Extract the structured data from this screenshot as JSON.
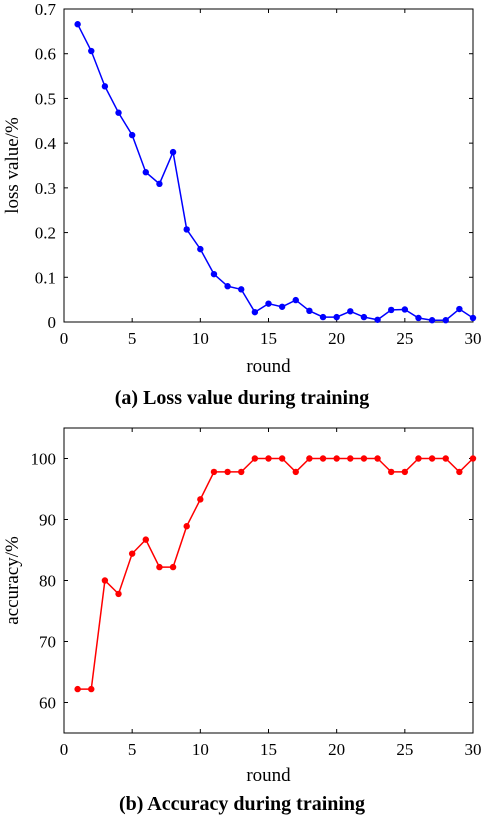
{
  "chart_data": [
    {
      "type": "line",
      "caption": "(a) Loss value during training",
      "xlabel": "round",
      "ylabel": "loss value/%",
      "xlim": [
        0,
        30
      ],
      "ylim": [
        0,
        0.7
      ],
      "xticks": [
        0,
        5,
        10,
        15,
        20,
        25,
        30
      ],
      "yticks": [
        0,
        0.1,
        0.2,
        0.3,
        0.4,
        0.5,
        0.6,
        0.7
      ],
      "grid": false,
      "color": "#0000ff",
      "x": [
        1,
        2,
        3,
        4,
        5,
        6,
        7,
        8,
        9,
        10,
        11,
        12,
        13,
        14,
        15,
        16,
        17,
        18,
        19,
        20,
        21,
        22,
        23,
        24,
        25,
        26,
        27,
        28,
        29,
        30
      ],
      "y": [
        0.666,
        0.606,
        0.527,
        0.468,
        0.418,
        0.335,
        0.309,
        0.38,
        0.207,
        0.163,
        0.107,
        0.08,
        0.073,
        0.022,
        0.041,
        0.034,
        0.049,
        0.025,
        0.011,
        0.011,
        0.024,
        0.011,
        0.005,
        0.027,
        0.028,
        0.009,
        0.004,
        0.004,
        0.029,
        0.009
      ]
    },
    {
      "type": "line",
      "caption": "(b) Accuracy during training",
      "xlabel": "round",
      "ylabel": "accuracy/%",
      "xlim": [
        0,
        30
      ],
      "ylim": [
        55,
        105
      ],
      "xticks": [
        0,
        5,
        10,
        15,
        20,
        25,
        30
      ],
      "yticks": [
        60,
        70,
        80,
        90,
        100
      ],
      "grid": false,
      "color": "#ff0000",
      "x": [
        1,
        2,
        3,
        4,
        5,
        6,
        7,
        8,
        9,
        10,
        11,
        12,
        13,
        14,
        15,
        16,
        17,
        18,
        19,
        20,
        21,
        22,
        23,
        24,
        25,
        26,
        27,
        28,
        29,
        30
      ],
      "y": [
        62.2,
        62.2,
        80,
        77.8,
        84.4,
        86.7,
        82.2,
        82.2,
        88.9,
        93.3,
        97.8,
        97.8,
        97.8,
        100,
        100,
        100,
        97.8,
        100,
        100,
        100,
        100,
        100,
        100,
        97.8,
        97.8,
        100,
        100,
        100,
        97.8,
        100
      ]
    }
  ]
}
